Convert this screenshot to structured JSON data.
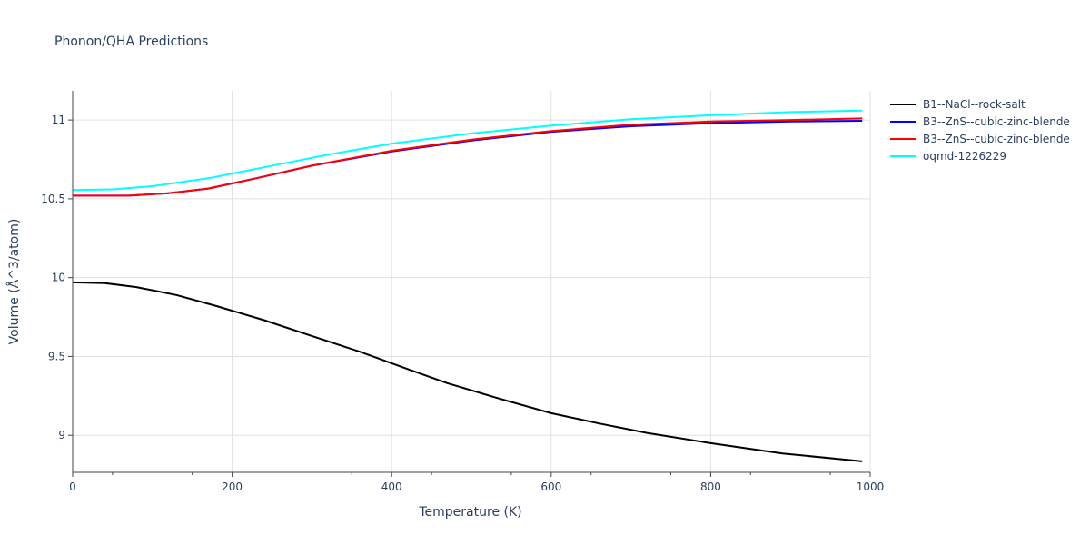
{
  "chart_data": {
    "type": "line",
    "title": "Phonon/QHA Predictions",
    "xlabel": "Temperature (K)",
    "ylabel": "Volume (Å^3/atom)",
    "xlim": [
      0,
      1000
    ],
    "ylim": [
      8.765,
      11.185
    ],
    "xticks": [
      0,
      200,
      400,
      600,
      800,
      1000
    ],
    "yticks": [
      9,
      9.5,
      10,
      10.5,
      11
    ],
    "grid": true,
    "legend_position": "top-right",
    "series": [
      {
        "name": "B1--NaCl--rock-salt",
        "color": "#000000",
        "x": [
          0,
          40,
          80,
          130,
          180,
          240,
          300,
          360,
          420,
          470,
          530,
          600,
          660,
          720,
          800,
          890,
          990
        ],
        "y": [
          9.97,
          9.965,
          9.94,
          9.89,
          9.82,
          9.73,
          9.63,
          9.53,
          9.42,
          9.33,
          9.24,
          9.14,
          9.075,
          9.015,
          8.95,
          8.885,
          8.835
        ]
      },
      {
        "name": "B3--ZnS--cubic-zinc-blende",
        "color": "#0000ff",
        "x": [
          0,
          70,
          120,
          170,
          230,
          300,
          400,
          500,
          600,
          700,
          800,
          900,
          990
        ],
        "y": [
          10.52,
          10.52,
          10.535,
          10.565,
          10.63,
          10.71,
          10.8,
          10.87,
          10.925,
          10.96,
          10.98,
          10.99,
          10.995
        ]
      },
      {
        "name": "B3--ZnS--cubic-zinc-blende",
        "color": "#ff0000",
        "x": [
          0,
          70,
          120,
          170,
          230,
          300,
          400,
          500,
          600,
          700,
          800,
          900,
          990
        ],
        "y": [
          10.52,
          10.52,
          10.535,
          10.565,
          10.63,
          10.71,
          10.805,
          10.875,
          10.93,
          10.97,
          10.99,
          11.0,
          11.01
        ]
      },
      {
        "name": "oqmd-1226229",
        "color": "#00ffff",
        "x": [
          0,
          50,
          100,
          170,
          240,
          320,
          400,
          500,
          600,
          700,
          800,
          900,
          990
        ],
        "y": [
          10.555,
          10.56,
          10.58,
          10.63,
          10.7,
          10.78,
          10.85,
          10.915,
          10.965,
          11.005,
          11.03,
          11.05,
          11.06
        ]
      }
    ]
  }
}
